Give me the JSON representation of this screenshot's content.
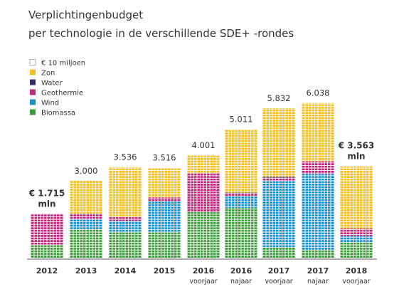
{
  "chart_data": {
    "type": "bar",
    "title": "Verplichtingenbudget",
    "subtitle": "per technologie in de verschillende SDE+ -rondes",
    "legend": {
      "placement": "top-left",
      "unit_label": "€ 10 miljoen",
      "items": [
        {
          "name": "Zon",
          "color": "#f5be23"
        },
        {
          "name": "Water",
          "color": "#3a2a6e"
        },
        {
          "name": "Geothermie",
          "color": "#c0267b"
        },
        {
          "name": "Wind",
          "color": "#1a8fcf"
        },
        {
          "name": "Biomassa",
          "color": "#3e9b3a"
        }
      ]
    },
    "categories": [
      {
        "year": "2012",
        "sub": ""
      },
      {
        "year": "2013",
        "sub": ""
      },
      {
        "year": "2014",
        "sub": ""
      },
      {
        "year": "2015",
        "sub": ""
      },
      {
        "year": "2016",
        "sub": "voorjaar"
      },
      {
        "year": "2016",
        "sub": "najaar"
      },
      {
        "year": "2017",
        "sub": "voorjaar"
      },
      {
        "year": "2017",
        "sub": "najaar"
      },
      {
        "year": "2018",
        "sub": "voorjaar"
      }
    ],
    "totals_labels": [
      "€ 1.715\nmln",
      "3.000",
      "3.536",
      "3.516",
      "4.001",
      "5.011",
      "5.832",
      "6.038",
      "€ 3.563\nmln"
    ],
    "totals": [
      1715,
      3000,
      3536,
      3516,
      4001,
      5011,
      5832,
      6038,
      3563
    ],
    "series": [
      {
        "name": "Biomassa",
        "values": [
          490,
          1120,
          990,
          990,
          1780,
          1950,
          390,
          290,
          600
        ]
      },
      {
        "name": "Wind",
        "values": [
          0,
          400,
          450,
          1220,
          0,
          440,
          2610,
          2980,
          250
        ]
      },
      {
        "name": "Geothermie",
        "values": [
          1225,
          180,
          150,
          140,
          1520,
          130,
          130,
          490,
          290
        ]
      },
      {
        "name": "Water",
        "values": [
          0,
          20,
          0,
          0,
          0,
          20,
          30,
          0,
          0
        ]
      },
      {
        "name": "Zon",
        "values": [
          0,
          1280,
          1946,
          1166,
          701,
          2471,
          2672,
          2278,
          2423
        ]
      }
    ],
    "grid": false
  }
}
